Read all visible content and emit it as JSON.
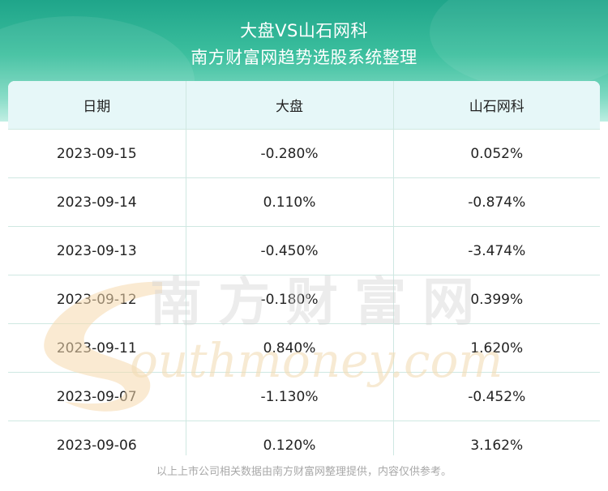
{
  "header": {
    "title": "大盘VS山石网科",
    "subtitle": "南方财富网趋势选股系统整理"
  },
  "table": {
    "columns": [
      "日期",
      "大盘",
      "山石网科"
    ],
    "rows": [
      [
        "2023-09-15",
        "-0.280%",
        "0.052%"
      ],
      [
        "2023-09-14",
        "0.110%",
        "-0.874%"
      ],
      [
        "2023-09-13",
        "-0.450%",
        "-3.474%"
      ],
      [
        "2023-09-12",
        "-0.180%",
        "0.399%"
      ],
      [
        "2023-09-11",
        "0.840%",
        "1.620%"
      ],
      [
        "2023-09-07",
        "-1.130%",
        "-0.452%"
      ],
      [
        "2023-09-06",
        "0.120%",
        "3.162%"
      ]
    ]
  },
  "watermark": {
    "cn": "南方财富网",
    "en": "outhmoney.com"
  },
  "footer": {
    "note": "以上上市公司相关数据由南方财富网整理提供，内容仅供参考。"
  },
  "colors": {
    "header_top": "#1fa58a",
    "header_bottom": "#bdeee2",
    "table_head_bg": "#e6f7f8",
    "grid_line": "#cfe8e2"
  }
}
